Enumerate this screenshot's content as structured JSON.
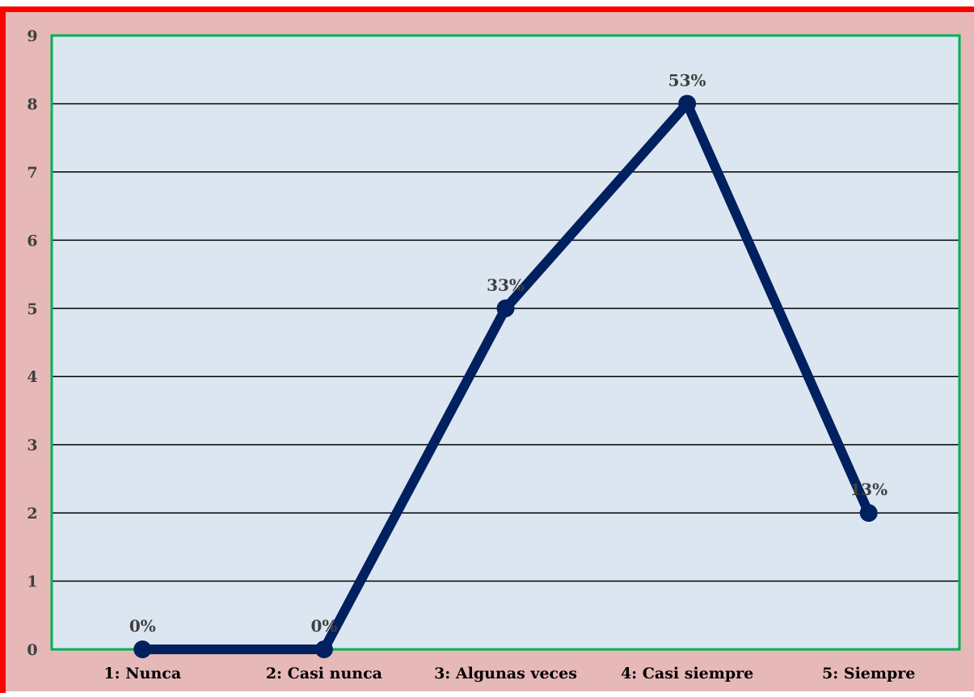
{
  "colors": {
    "outer_background": "#e6b8b7",
    "outer_border": "#ff0000",
    "plot_background": "#dce6f1",
    "plot_border": "#00b050",
    "line": "#002060",
    "gridline": "#000000",
    "label_text": "#404040",
    "category_text": "#000000"
  },
  "chart_data": {
    "type": "line",
    "title": "",
    "xlabel": "",
    "ylabel": "",
    "categories": [
      "1: Nunca",
      "2: Casi nunca",
      "3: Algunas veces",
      "4: Casi siempre",
      "5: Siempre"
    ],
    "series": [
      {
        "values": [
          0,
          0,
          5,
          8,
          2
        ],
        "data_labels": [
          "0%",
          "0%",
          "33%",
          "53%",
          "13%"
        ]
      }
    ],
    "ylim": [
      0,
      9
    ],
    "yticks": [
      "0",
      "1",
      "2",
      "3",
      "4",
      "5",
      "6",
      "7",
      "8",
      "9"
    ],
    "grid": true,
    "legend": "none"
  }
}
